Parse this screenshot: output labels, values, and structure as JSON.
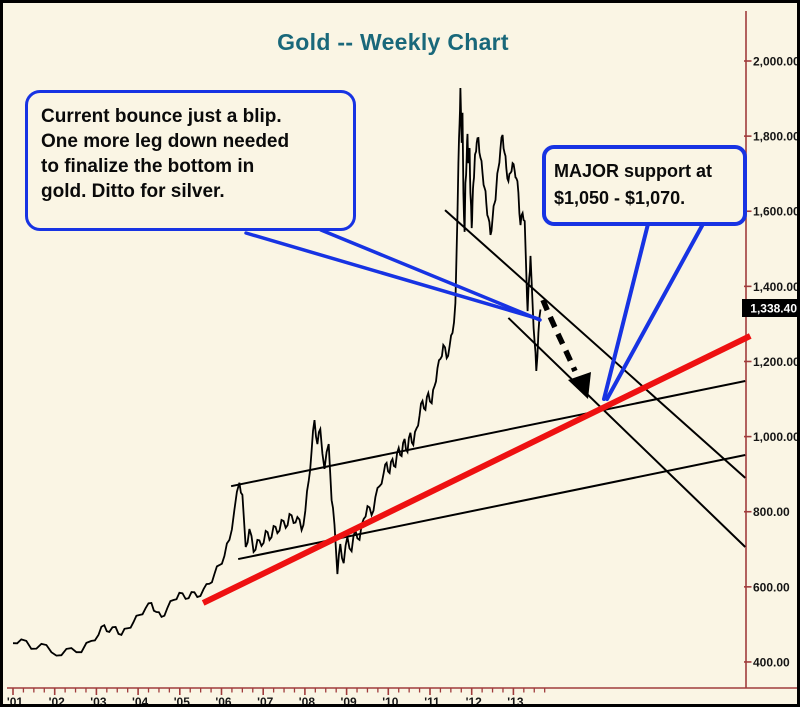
{
  "title": "Gold -- Weekly Chart",
  "price_tag": "1,338.40",
  "callouts": {
    "left": {
      "lines": [
        "Current bounce just a blip.",
        "One more leg down needed",
        "to finalize the bottom in",
        "gold. Ditto for silver."
      ]
    },
    "right": {
      "lines": [
        "MAJOR support at",
        "$1,050 - $1,070."
      ]
    }
  },
  "colors": {
    "background": "#FAF5E4",
    "title_teal": "#19687A",
    "annotation_blue": "#1733E3",
    "trendline_red": "#EE1111",
    "axis_maroon": "#A03C3C",
    "price_black": "#000000",
    "tag_bg": "#000000",
    "tag_text": "#FFFFFF"
  },
  "chart_data": {
    "type": "line",
    "title": "Gold -- Weekly Chart",
    "xlabel": "",
    "ylabel": "",
    "grid": false,
    "legend": "none",
    "y_ticks": [
      2000,
      1800,
      1600,
      1400,
      1200,
      1000,
      800,
      600,
      400
    ],
    "y_tick_labels": [
      "2,000.00",
      "1,800.00",
      "1,600.00",
      "1,400.00",
      "1,200.00",
      "1,000.00",
      "800.00",
      "600.00",
      "400.00"
    ],
    "x_tick_labels": [
      "'01",
      "'02",
      "'03",
      "'04",
      "'05",
      "'06",
      "'07",
      "'08",
      "'09",
      "'10",
      "'11",
      "'12",
      "'13"
    ],
    "x_range_years": [
      2001,
      2018.8
    ],
    "last_price": 1338.4,
    "support_zone": "$1,050 - $1,070",
    "series": [
      {
        "name": "Gold weekly price",
        "points": [
          [
            2001.0,
            450
          ],
          [
            2001.2,
            460
          ],
          [
            2001.44,
            435
          ],
          [
            2001.68,
            448
          ],
          [
            2001.92,
            426
          ],
          [
            2002.16,
            418
          ],
          [
            2002.4,
            437
          ],
          [
            2002.64,
            426
          ],
          [
            2002.88,
            456
          ],
          [
            2003.05,
            472
          ],
          [
            2003.19,
            498
          ],
          [
            2003.31,
            480
          ],
          [
            2003.46,
            493
          ],
          [
            2003.6,
            472
          ],
          [
            2003.75,
            490
          ],
          [
            2003.89,
            506
          ],
          [
            2004.03,
            525
          ],
          [
            2004.18,
            543
          ],
          [
            2004.32,
            557
          ],
          [
            2004.44,
            533
          ],
          [
            2004.56,
            520
          ],
          [
            2004.7,
            543
          ],
          [
            2004.85,
            565
          ],
          [
            2004.99,
            584
          ],
          [
            2005.14,
            568
          ],
          [
            2005.28,
            586
          ],
          [
            2005.42,
            573
          ],
          [
            2005.57,
            594
          ],
          [
            2005.71,
            608
          ],
          [
            2005.83,
            634
          ],
          [
            2005.95,
            658
          ],
          [
            2006.07,
            682
          ],
          [
            2006.19,
            725
          ],
          [
            2006.31,
            805
          ],
          [
            2006.43,
            877
          ],
          [
            2006.5,
            845
          ],
          [
            2006.58,
            706
          ],
          [
            2006.67,
            754
          ],
          [
            2006.77,
            693
          ],
          [
            2006.86,
            725
          ],
          [
            2006.96,
            709
          ],
          [
            2007.06,
            749
          ],
          [
            2007.15,
            725
          ],
          [
            2007.25,
            762
          ],
          [
            2007.34,
            743
          ],
          [
            2007.44,
            778
          ],
          [
            2007.54,
            757
          ],
          [
            2007.63,
            794
          ],
          [
            2007.73,
            770
          ],
          [
            2007.82,
            786
          ],
          [
            2007.92,
            751
          ],
          [
            2008.01,
            802
          ],
          [
            2008.09,
            882
          ],
          [
            2008.16,
            962
          ],
          [
            2008.23,
            1044
          ],
          [
            2008.3,
            980
          ],
          [
            2008.37,
            1020
          ],
          [
            2008.47,
            914
          ],
          [
            2008.57,
            980
          ],
          [
            2008.64,
            831
          ],
          [
            2008.71,
            765
          ],
          [
            2008.78,
            634
          ],
          [
            2008.85,
            714
          ],
          [
            2008.93,
            663
          ],
          [
            2009.02,
            733
          ],
          [
            2009.12,
            695
          ],
          [
            2009.21,
            751
          ],
          [
            2009.31,
            725
          ],
          [
            2009.41,
            781
          ],
          [
            2009.5,
            815
          ],
          [
            2009.6,
            791
          ],
          [
            2009.69,
            839
          ],
          [
            2009.79,
            868
          ],
          [
            2009.89,
            903
          ],
          [
            2009.96,
            930
          ],
          [
            2010.03,
            903
          ],
          [
            2010.1,
            940
          ],
          [
            2010.17,
            919
          ],
          [
            2010.25,
            970
          ],
          [
            2010.32,
            948
          ],
          [
            2010.39,
            994
          ],
          [
            2010.46,
            959
          ],
          [
            2010.53,
            1010
          ],
          [
            2010.6,
            978
          ],
          [
            2010.68,
            1023
          ],
          [
            2010.75,
            1057
          ],
          [
            2010.82,
            1095
          ],
          [
            2010.89,
            1071
          ],
          [
            2010.96,
            1116
          ],
          [
            2011.04,
            1089
          ],
          [
            2011.11,
            1135
          ],
          [
            2011.18,
            1183
          ],
          [
            2011.25,
            1207
          ],
          [
            2011.32,
            1244
          ],
          [
            2011.4,
            1209
          ],
          [
            2011.47,
            1241
          ],
          [
            2011.54,
            1276
          ],
          [
            2011.61,
            1356
          ],
          [
            2011.66,
            1595
          ],
          [
            2011.68,
            1728
          ],
          [
            2011.71,
            1835
          ],
          [
            2011.73,
            1928
          ],
          [
            2011.76,
            1782
          ],
          [
            2011.78,
            1862
          ],
          [
            2011.8,
            1649
          ],
          [
            2011.83,
            1545
          ],
          [
            2011.85,
            1675
          ],
          [
            2011.88,
            1742
          ],
          [
            2011.9,
            1806
          ],
          [
            2011.92,
            1728
          ],
          [
            2011.95,
            1768
          ],
          [
            2011.97,
            1649
          ],
          [
            2012.0,
            1555
          ],
          [
            2012.02,
            1622
          ],
          [
            2012.04,
            1675
          ],
          [
            2012.07,
            1728
          ],
          [
            2012.09,
            1755
          ],
          [
            2012.12,
            1782
          ],
          [
            2012.16,
            1795
          ],
          [
            2012.21,
            1742
          ],
          [
            2012.26,
            1702
          ],
          [
            2012.31,
            1662
          ],
          [
            2012.35,
            1622
          ],
          [
            2012.4,
            1582
          ],
          [
            2012.45,
            1537
          ],
          [
            2012.5,
            1582
          ],
          [
            2012.55,
            1622
          ],
          [
            2012.59,
            1662
          ],
          [
            2012.64,
            1715
          ],
          [
            2012.69,
            1768
          ],
          [
            2012.74,
            1803
          ],
          [
            2012.79,
            1755
          ],
          [
            2012.83,
            1715
          ],
          [
            2012.88,
            1680
          ],
          [
            2012.93,
            1702
          ],
          [
            2012.98,
            1728
          ],
          [
            2013.03,
            1707
          ],
          [
            2013.07,
            1688
          ],
          [
            2013.12,
            1649
          ],
          [
            2013.17,
            1563
          ],
          [
            2013.22,
            1595
          ],
          [
            2013.27,
            1574
          ],
          [
            2013.31,
            1436
          ],
          [
            2013.34,
            1334
          ],
          [
            2013.38,
            1422
          ],
          [
            2013.41,
            1481
          ],
          [
            2013.46,
            1353
          ],
          [
            2013.51,
            1249
          ],
          [
            2013.55,
            1175
          ],
          [
            2013.6,
            1276
          ],
          [
            2013.65,
            1338.4
          ]
        ]
      }
    ],
    "trendlines": [
      {
        "name": "long-term-support-trendline",
        "color": "#EE1111",
        "width": 6,
        "from": [
          2005.56,
          557
        ],
        "to": [
          2018.68,
          1268
        ]
      },
      {
        "name": "ascending-channel-upper",
        "color": "#000000",
        "width": 2,
        "from": [
          2006.23,
          868
        ],
        "to": [
          2018.56,
          1148
        ]
      },
      {
        "name": "ascending-channel-lower",
        "color": "#000000",
        "width": 2,
        "from": [
          2006.4,
          674
        ],
        "to": [
          2018.56,
          951
        ]
      },
      {
        "name": "descending-channel-upper",
        "color": "#000000",
        "width": 2,
        "from": [
          2011.36,
          1603
        ],
        "to": [
          2018.56,
          890
        ]
      },
      {
        "name": "descending-channel-lower",
        "color": "#000000",
        "width": 2,
        "from": [
          2012.88,
          1316
        ],
        "to": [
          2018.56,
          706
        ]
      }
    ]
  }
}
